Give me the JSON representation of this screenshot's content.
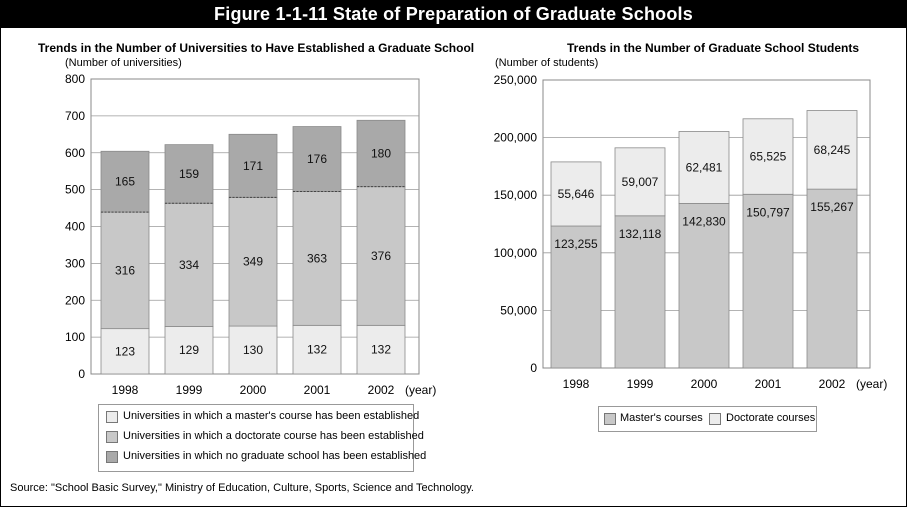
{
  "figure_title": "Figure 1-1-11  State of Preparation of Graduate Schools",
  "colors": {
    "light": "#ececec",
    "mid": "#c8c8c8",
    "dark": "#a9a9a9",
    "plot_bg": "#ffffff"
  },
  "chart_data": [
    {
      "type": "bar",
      "stacked": true,
      "title": "Trends in the Number of Universities to Have Established a Graduate School",
      "ylabel": "(Number of universities)",
      "xlabel": "(year)",
      "categories": [
        "1998",
        "1999",
        "2000",
        "2001",
        "2002"
      ],
      "ylim": [
        0,
        800
      ],
      "yticks": [
        0,
        100,
        200,
        300,
        400,
        500,
        600,
        700,
        800
      ],
      "series": [
        {
          "name": "Universities in which a master's course has been established",
          "color_key": "light",
          "values": [
            123,
            129,
            130,
            132,
            132
          ]
        },
        {
          "name": "Universities in which a doctorate course has been established",
          "color_key": "mid",
          "values": [
            316,
            334,
            349,
            363,
            376
          ]
        },
        {
          "name": "Universities in which no graduate school has been established",
          "color_key": "dark",
          "values": [
            165,
            159,
            171,
            176,
            180
          ]
        }
      ],
      "legend_position": "bottom"
    },
    {
      "type": "bar",
      "stacked": true,
      "title": "Trends in the Number of Graduate School Students",
      "ylabel": "(Number of students)",
      "xlabel": "(year)",
      "categories": [
        "1998",
        "1999",
        "2000",
        "2001",
        "2002"
      ],
      "ylim": [
        0,
        250000
      ],
      "yticks": [
        0,
        50000,
        100000,
        150000,
        200000,
        250000
      ],
      "ytick_labels": [
        "0",
        "50,000",
        "100,000",
        "150,000",
        "200,000",
        "250,000"
      ],
      "series": [
        {
          "name": "Master's courses",
          "color_key": "mid",
          "values": [
            123255,
            132118,
            142830,
            150797,
            155267
          ],
          "labels": [
            "123,255",
            "132,118",
            "142,830",
            "150,797",
            "155,267"
          ]
        },
        {
          "name": "Doctorate courses",
          "color_key": "light",
          "values": [
            55646,
            59007,
            62481,
            65525,
            68245
          ],
          "labels": [
            "55,646",
            "59,007",
            "62,481",
            "65,525",
            "68,245"
          ]
        }
      ],
      "legend_position": "bottom"
    }
  ],
  "source": "Source: \"School Basic Survey,\" Ministry of Education, Culture, Sports, Science and Technology."
}
